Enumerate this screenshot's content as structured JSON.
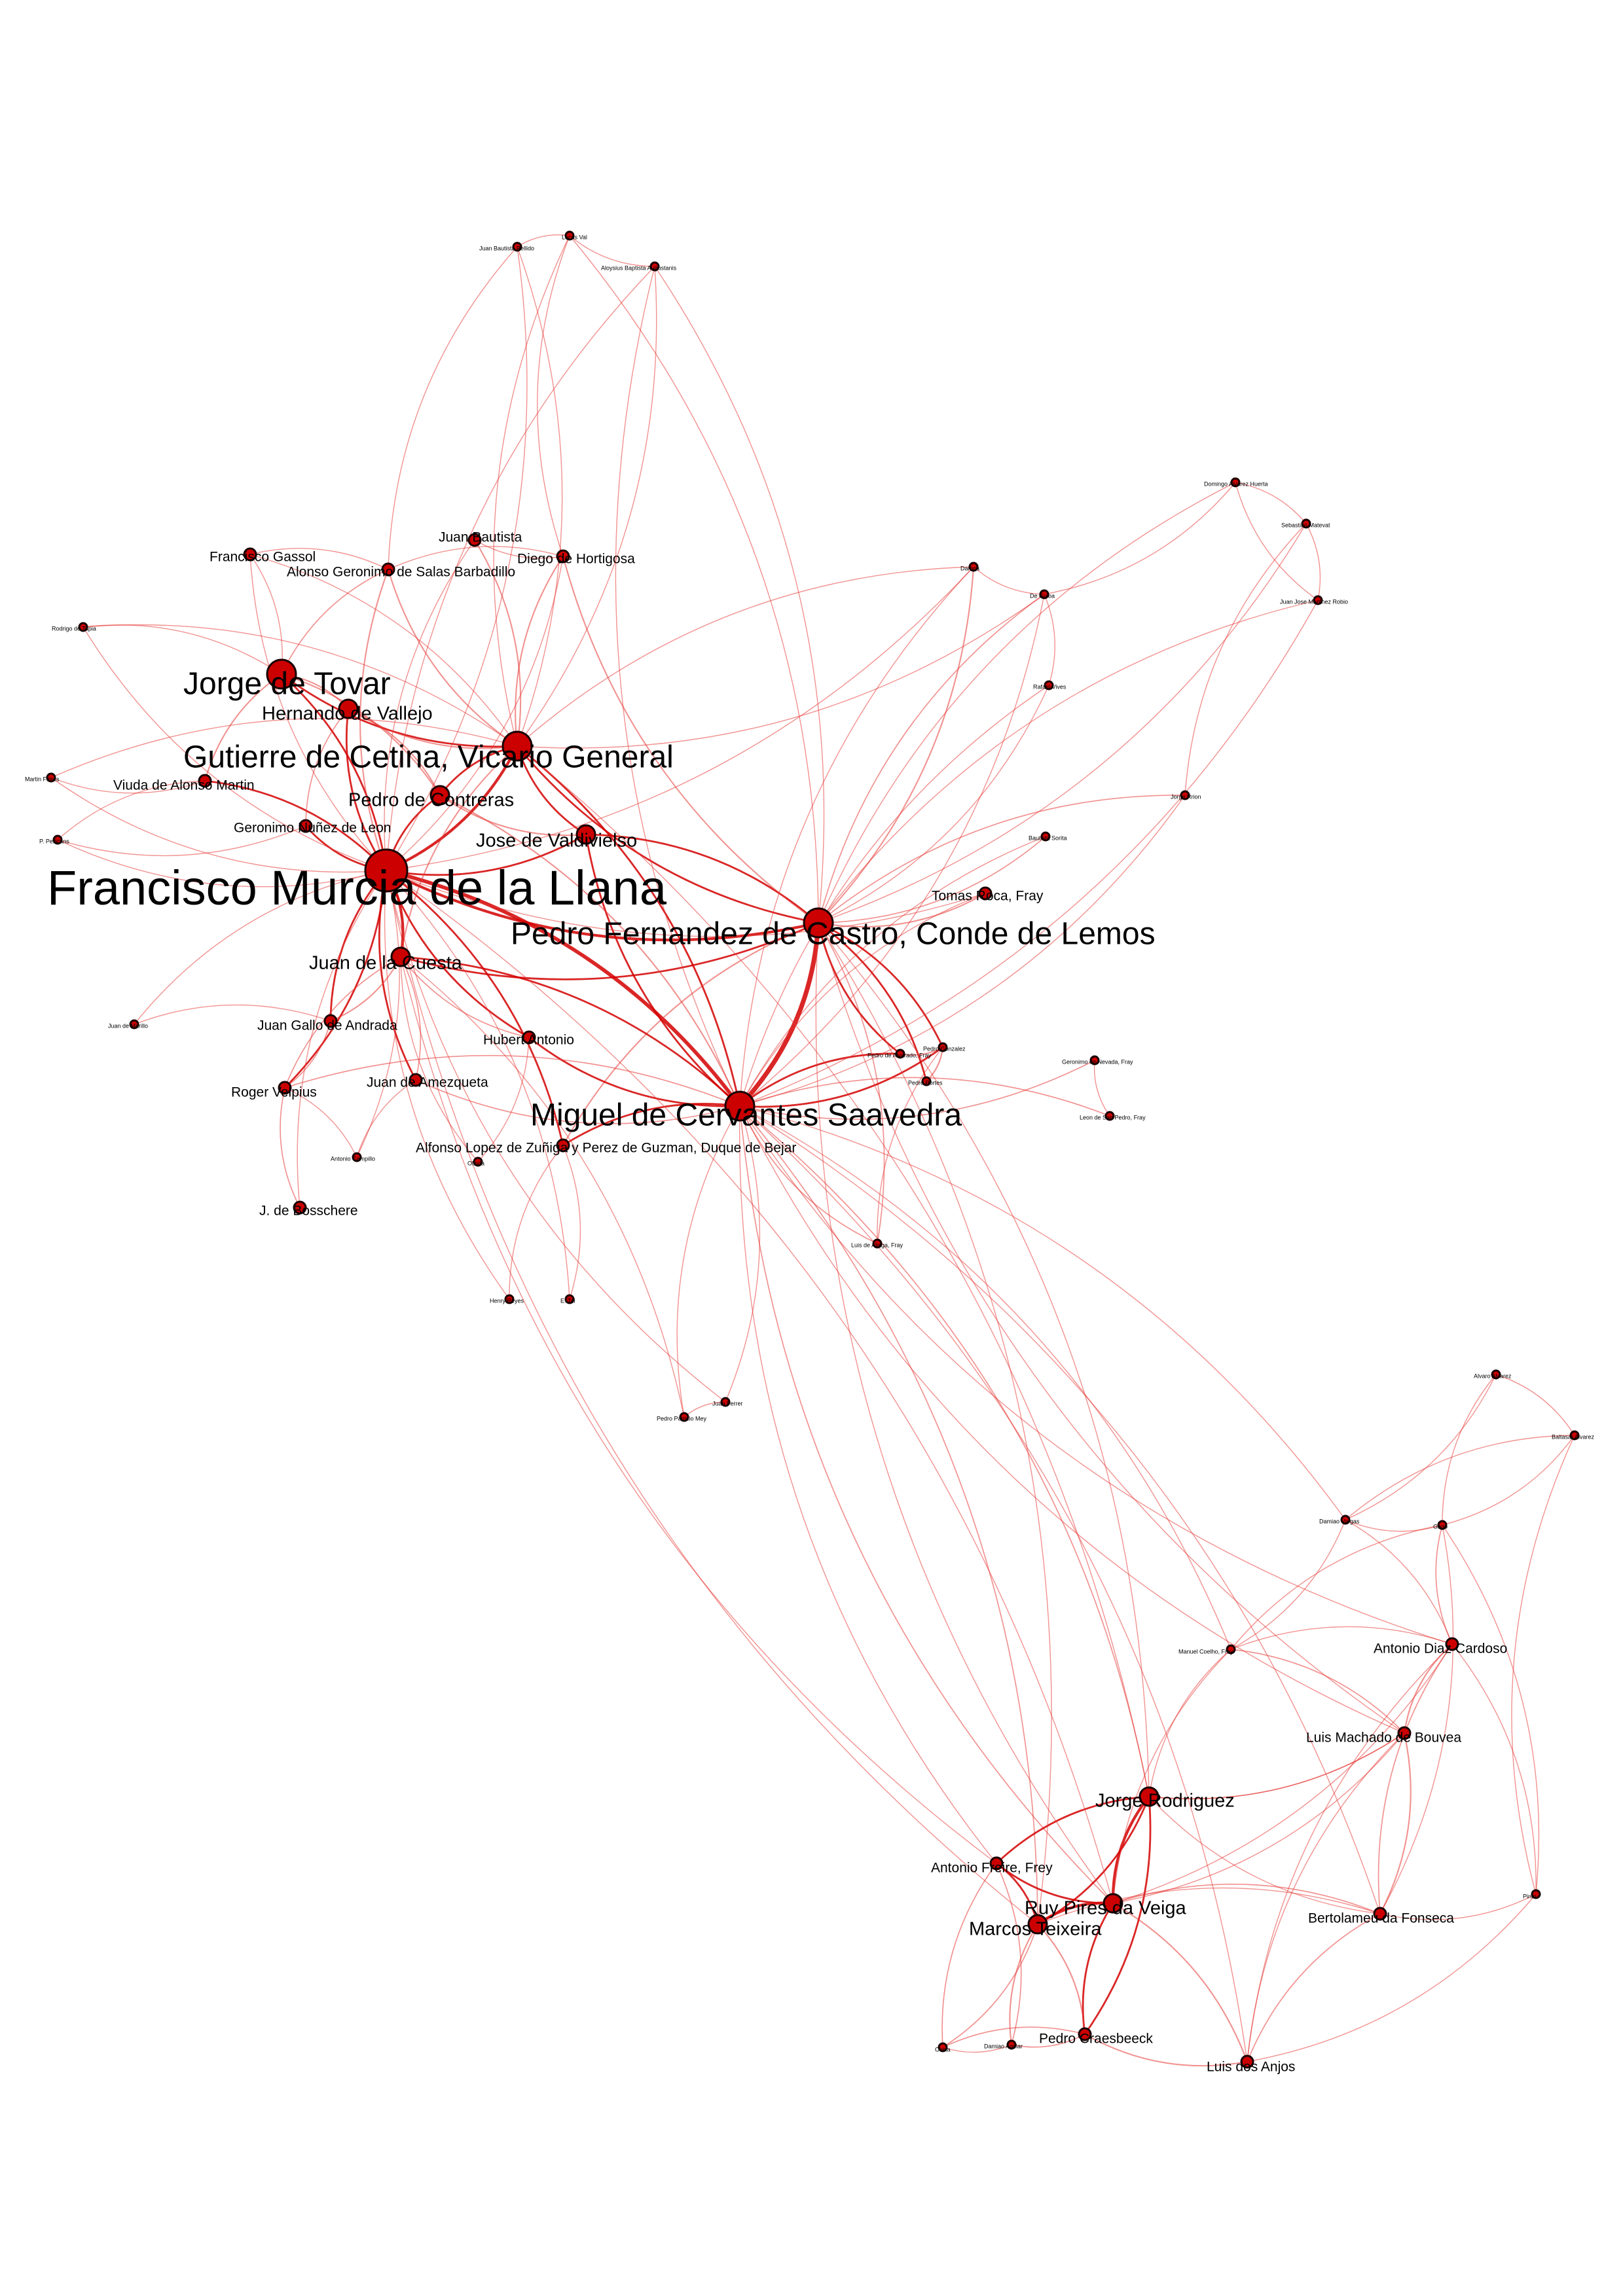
{
  "diagram": {
    "type": "network-graph",
    "node_color": "#cc0000",
    "node_outline": "#1a0000",
    "edge_color": "#e53935",
    "strong_edge_color": "#d40000",
    "label_color": "#000000"
  },
  "nodes": [
    {
      "id": "murcia",
      "label": "Francisco Murcia de la Llana",
      "size": "xl"
    },
    {
      "id": "cetina",
      "label": "Gutierre de Cetina, Vicario General",
      "size": "l"
    },
    {
      "id": "cervantes",
      "label": "Miguel de Cervantes Saavedra",
      "size": "l"
    },
    {
      "id": "lemos",
      "label": "Pedro Fernandez de Castro, Conde de Lemos",
      "size": "l"
    },
    {
      "id": "tovar",
      "label": "Jorge de Tovar",
      "size": "l"
    },
    {
      "id": "valdivielso",
      "label": "Jose de Valdivielso",
      "size": "m"
    },
    {
      "id": "contreras",
      "label": "Pedro de Contreras",
      "size": "m"
    },
    {
      "id": "vallejo",
      "label": "Hernando de Vallejo",
      "size": "m"
    },
    {
      "id": "cuesta",
      "label": "Juan de la Cuesta",
      "size": "m"
    },
    {
      "id": "gallo",
      "label": "Juan Gallo de Andrada",
      "size": "s"
    },
    {
      "id": "velpius",
      "label": "Roger Velpius",
      "size": "s"
    },
    {
      "id": "martin",
      "label": "Viuda de Alonso Martin",
      "size": "s"
    },
    {
      "id": "nunez",
      "label": "Geronimo Nuñez de Leon",
      "size": "s"
    },
    {
      "id": "hubert",
      "label": "Hubert Antonio",
      "size": "s"
    },
    {
      "id": "amezqueta",
      "label": "Juan de Amezqueta",
      "size": "s"
    },
    {
      "id": "bejar",
      "label": "Alfonso Lopez de Zuñiga y Perez de Guzman, Duque de Bejar",
      "size": "s"
    },
    {
      "id": "bautista",
      "label": "Juan Bautista",
      "size": "s"
    },
    {
      "id": "salas",
      "label": "Alonso Geronimo de Salas Barbadillo",
      "size": "s"
    },
    {
      "id": "hortigosa",
      "label": "Diego de Hortigosa",
      "size": "s"
    },
    {
      "id": "gassol",
      "label": "Francisco Gassol",
      "size": "s"
    },
    {
      "id": "bosschere",
      "label": "J. de Bosschere",
      "size": "s"
    },
    {
      "id": "tomas",
      "label": "Tomas Roca, Fray",
      "size": "s"
    },
    {
      "id": "mendez",
      "label": "Jorge Rodriguez",
      "size": "m"
    },
    {
      "id": "ruy",
      "label": "Ruy Pires da Veiga",
      "size": "m"
    },
    {
      "id": "teixeira",
      "label": "Marcos Teixeira",
      "size": "m"
    },
    {
      "id": "freire",
      "label": "Antonio Freire, Frey",
      "size": "s"
    },
    {
      "id": "craesbeeck",
      "label": "Pedro Craesbeeck",
      "size": "s"
    },
    {
      "id": "anjos",
      "label": "Luis dos Anjos",
      "size": "s"
    },
    {
      "id": "fonseca",
      "label": "Bertolameu da Fonseca",
      "size": "s"
    },
    {
      "id": "bouvea",
      "label": "Luis Machado de Bouvea",
      "size": "s"
    },
    {
      "id": "cardoso",
      "label": "Antonio Diaz Cardoso",
      "size": "s"
    },
    {
      "id": "coelho",
      "label": "Manuel Coelho, Fray",
      "size": "xs"
    },
    {
      "id": "pinto",
      "label": "Pinto",
      "size": "xs"
    },
    {
      "id": "aguiar",
      "label": "Damiao Aguiar",
      "size": "xs"
    },
    {
      "id": "costa",
      "label": "Costa",
      "size": "xs"
    },
    {
      "id": "vargas",
      "label": "Damiao Vargas",
      "size": "xs"
    },
    {
      "id": "gago",
      "label": "Gago",
      "size": "xs"
    },
    {
      "id": "alvarez1",
      "label": "Alvaro Alvarez",
      "size": "xs"
    },
    {
      "id": "alvarez2",
      "label": "Baltasar Alvarez",
      "size": "xs"
    },
    {
      "id": "daroca",
      "label": "Daroca",
      "size": "xs"
    },
    {
      "id": "guiba",
      "label": "De Guiba",
      "size": "xs"
    },
    {
      "id": "vives",
      "label": "Rafael Vives",
      "size": "xs"
    },
    {
      "id": "jorgerrion",
      "label": "Jorge Rrion",
      "size": "xs"
    },
    {
      "id": "sorita",
      "label": "Bautista Sorita",
      "size": "xs"
    },
    {
      "id": "ahuerta",
      "label": "Domingo Alvarez Huerta",
      "size": "xs"
    },
    {
      "id": "matevat",
      "label": "Sebastian Matevat",
      "size": "xs"
    },
    {
      "id": "robio",
      "label": "Juan Jose Martinez Robio",
      "size": "xs"
    },
    {
      "id": "gonzalez",
      "label": "Pedro Gonzalez",
      "size": "xs"
    },
    {
      "id": "pedrofray",
      "label": "Pedro de Alvarado, Fray",
      "size": "xs"
    },
    {
      "id": "geronimofray",
      "label": "Geronimo de Nevada, Fray",
      "size": "xs"
    },
    {
      "id": "leonfray",
      "label": "Leon de San Pedro, Fray",
      "size": "xs"
    },
    {
      "id": "luisfray",
      "label": "Luis de Aliaga, Fray",
      "size": "xs"
    },
    {
      "id": "portes",
      "label": "Pedro Portes",
      "size": "xs"
    },
    {
      "id": "bellido",
      "label": "Juan Bautista Bellido",
      "size": "xs"
    },
    {
      "id": "lucasval",
      "label": "Lucas Val",
      "size": "xs"
    },
    {
      "id": "augustanis",
      "label": "Aloysius Baptista Augustanis",
      "size": "xs"
    },
    {
      "id": "tapia",
      "label": "Rodrigo de Tapia",
      "size": "xs"
    },
    {
      "id": "flores",
      "label": "Martin Flores",
      "size": "xs"
    },
    {
      "id": "pellicans",
      "label": "P. Pellicans",
      "size": "xs"
    },
    {
      "id": "marillo",
      "label": "Juan de Marillo",
      "size": "xs"
    },
    {
      "id": "campillo",
      "label": "Antonio Campillo",
      "size": "xs"
    },
    {
      "id": "olinda",
      "label": "Olinda",
      "size": "xs"
    },
    {
      "id": "henry",
      "label": "Henry Reyes",
      "size": "xs"
    },
    {
      "id": "etal",
      "label": "E. Tal",
      "size": "xs"
    },
    {
      "id": "juanferrer",
      "label": "Juan Ferrer",
      "size": "xs"
    },
    {
      "id": "pedromey",
      "label": "Pedro Patricio Mey",
      "size": "xs"
    }
  ]
}
